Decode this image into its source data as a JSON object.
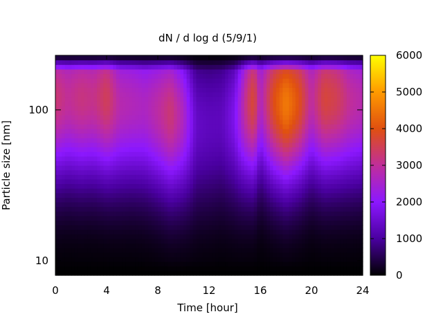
{
  "chart_data": {
    "type": "heatmap",
    "title": "dN / d log d (5/9/1)",
    "xlabel": "Time [hour]",
    "ylabel": "Particle size [nm]",
    "xlim": [
      0,
      24
    ],
    "ylim": [
      8,
      230
    ],
    "y_scale": "log",
    "x_ticks": [
      0,
      4,
      8,
      12,
      16,
      20,
      24
    ],
    "x_tick_labels": [
      "0",
      "4",
      "8",
      "12",
      "16",
      "20",
      "24"
    ],
    "y_ticks": [
      10,
      100
    ],
    "y_tick_labels": [
      "10",
      "100"
    ],
    "colorbar": {
      "range": [
        0,
        6000
      ],
      "ticks": [
        0,
        1000,
        2000,
        3000,
        4000,
        5000,
        6000
      ],
      "tick_labels": [
        "0",
        "1000",
        "2000",
        "3000",
        "4000",
        "5000",
        "6000"
      ],
      "colors": [
        "#000000",
        "#4a00a0",
        "#8c18ff",
        "#c02e9a",
        "#e05010",
        "#ff9a00",
        "#ffff00"
      ]
    },
    "grid": false,
    "mode_profile": {
      "time": [
        0,
        1,
        2,
        3,
        4,
        5,
        6,
        7,
        8,
        9,
        10,
        11,
        12,
        13,
        14,
        15,
        15.5,
        16,
        17,
        18,
        19,
        20,
        21,
        22,
        23,
        24
      ],
      "peak_value": [
        3300,
        3000,
        3200,
        3100,
        3500,
        2800,
        2700,
        2600,
        2900,
        3300,
        2600,
        1400,
        1300,
        1300,
        1800,
        3300,
        3800,
        2600,
        3900,
        4600,
        4000,
        2900,
        3700,
        3500,
        3000,
        2800
      ],
      "peak_size_nm": [
        120,
        120,
        120,
        120,
        120,
        110,
        110,
        105,
        100,
        95,
        90,
        80,
        80,
        85,
        90,
        110,
        115,
        120,
        115,
        110,
        115,
        120,
        120,
        120,
        115,
        115
      ]
    }
  }
}
